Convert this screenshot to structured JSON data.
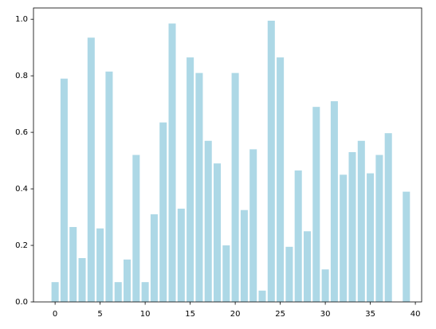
{
  "chart_data": {
    "type": "bar",
    "x": [
      0,
      1,
      2,
      3,
      4,
      5,
      6,
      7,
      8,
      9,
      10,
      11,
      12,
      13,
      14,
      15,
      16,
      17,
      18,
      19,
      20,
      21,
      22,
      23,
      24,
      25,
      26,
      27,
      28,
      29,
      30,
      31,
      32,
      33,
      34,
      35,
      36,
      37,
      38,
      39
    ],
    "values": [
      0.07,
      0.79,
      0.265,
      0.155,
      0.935,
      0.26,
      0.815,
      0.07,
      0.15,
      0.52,
      0.07,
      0.31,
      0.635,
      0.985,
      0.33,
      0.865,
      0.81,
      0.57,
      0.49,
      0.2,
      0.81,
      0.325,
      0.54,
      0.04,
      0.995,
      0.865,
      0.195,
      0.465,
      0.25,
      0.69,
      0.115,
      0.71,
      0.45,
      0.53,
      0.57,
      0.455,
      0.52,
      0.597,
      0,
      0.39
    ],
    "color": "#add8e6",
    "xlim": [
      -2.4,
      40.7
    ],
    "xticks": [
      0,
      5,
      10,
      15,
      20,
      25,
      30,
      35,
      40
    ],
    "ylim": [
      0,
      1.04
    ],
    "yticks": [
      {
        "value": 0,
        "label": "0.0"
      },
      {
        "value": 0.2,
        "label": "0.2"
      },
      {
        "value": 0.4,
        "label": "0.4"
      },
      {
        "value": 0.6,
        "label": "0.6"
      },
      {
        "value": 0.8,
        "label": "0.8"
      },
      {
        "value": 1,
        "label": "1.0"
      }
    ],
    "grid": false
  }
}
